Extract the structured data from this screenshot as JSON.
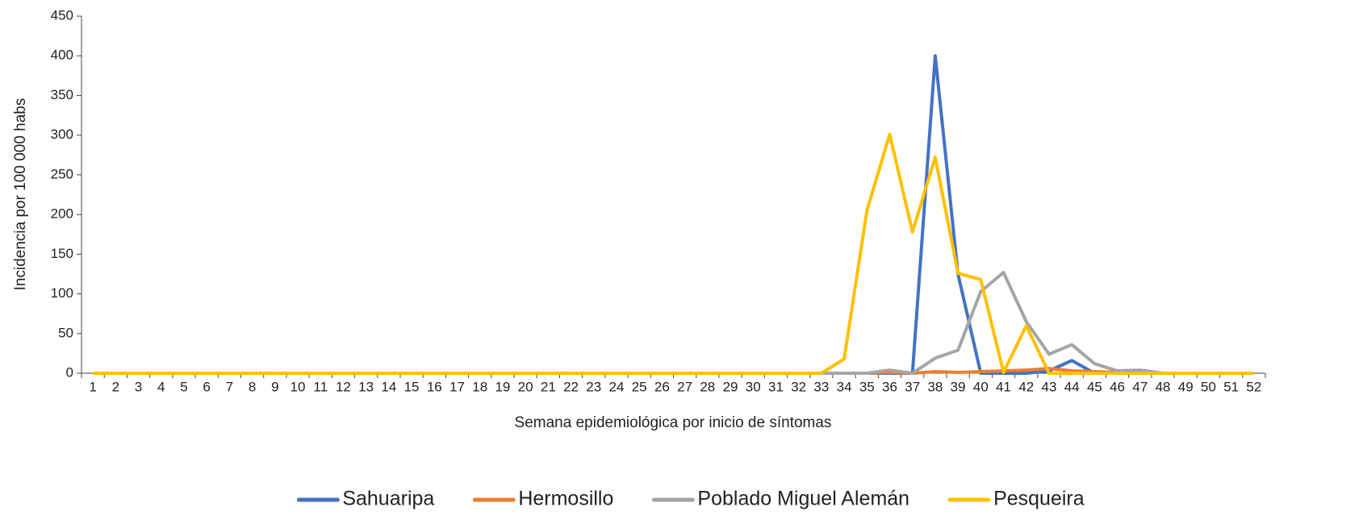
{
  "chart_data": {
    "type": "line",
    "y_label": "Incidencia por 100 000 habs",
    "x_label": "Semana epidemiológica por inicio de síntomas",
    "categories": [
      "1",
      "2",
      "3",
      "4",
      "5",
      "6",
      "7",
      "8",
      "9",
      "10",
      "11",
      "12",
      "13",
      "14",
      "15",
      "16",
      "17",
      "18",
      "19",
      "20",
      "21",
      "22",
      "23",
      "24",
      "25",
      "26",
      "27",
      "28",
      "29",
      "30",
      "31",
      "32",
      "33",
      "34",
      "35",
      "36",
      "37",
      "38",
      "39",
      "40",
      "41",
      "42",
      "43",
      "44",
      "45",
      "46",
      "47",
      "48",
      "49",
      "50",
      "51",
      "52"
    ],
    "series": [
      {
        "name": "Sahuaripa",
        "color": "#4472c4",
        "values": [
          0,
          0,
          0,
          0,
          0,
          0,
          0,
          0,
          0,
          0,
          0,
          0,
          0,
          0,
          0,
          0,
          0,
          0,
          0,
          0,
          0,
          0,
          0,
          0,
          0,
          0,
          0,
          0,
          0,
          0,
          0,
          0,
          0,
          0,
          0,
          0,
          0,
          400,
          125,
          0,
          0,
          0,
          3,
          16,
          0,
          0,
          0,
          0,
          0,
          0,
          0,
          0
        ]
      },
      {
        "name": "Hermosillo",
        "color": "#ed7d31",
        "values": [
          0,
          0,
          0,
          0,
          0,
          0,
          0,
          0,
          0,
          0,
          0,
          0,
          0,
          0,
          0,
          0,
          0,
          0,
          0,
          0,
          0,
          0,
          0,
          0,
          0,
          0,
          0,
          0,
          0,
          0,
          0,
          0,
          0,
          0,
          0,
          1,
          0,
          2,
          1,
          2,
          3,
          4,
          6,
          3,
          2,
          1,
          1,
          0,
          0,
          0,
          0,
          0
        ]
      },
      {
        "name": "Poblado Miguel Alemán",
        "color": "#a5a5a5",
        "values": [
          0,
          0,
          0,
          0,
          0,
          0,
          0,
          0,
          0,
          0,
          0,
          0,
          0,
          0,
          0,
          0,
          0,
          0,
          0,
          0,
          0,
          0,
          0,
          0,
          0,
          0,
          0,
          0,
          0,
          0,
          0,
          0,
          0,
          0,
          0,
          4,
          0,
          19,
          29,
          103,
          127,
          65,
          24,
          36,
          12,
          3,
          4,
          0,
          0,
          0,
          0,
          0
        ]
      },
      {
        "name": "Pesqueira",
        "color": "#ffc000",
        "values": [
          0,
          0,
          0,
          0,
          0,
          0,
          0,
          0,
          0,
          0,
          0,
          0,
          0,
          0,
          0,
          0,
          0,
          0,
          0,
          0,
          0,
          0,
          0,
          0,
          0,
          0,
          0,
          0,
          0,
          0,
          0,
          0,
          0,
          18,
          205,
          301,
          178,
          272,
          126,
          118,
          1,
          60,
          0,
          0,
          0,
          0,
          0,
          0,
          0,
          0,
          0,
          0
        ]
      }
    ],
    "ylim": [
      0,
      450
    ],
    "yticks": [
      0,
      50,
      100,
      150,
      200,
      250,
      300,
      350,
      400,
      450
    ],
    "legend": "bottom"
  }
}
